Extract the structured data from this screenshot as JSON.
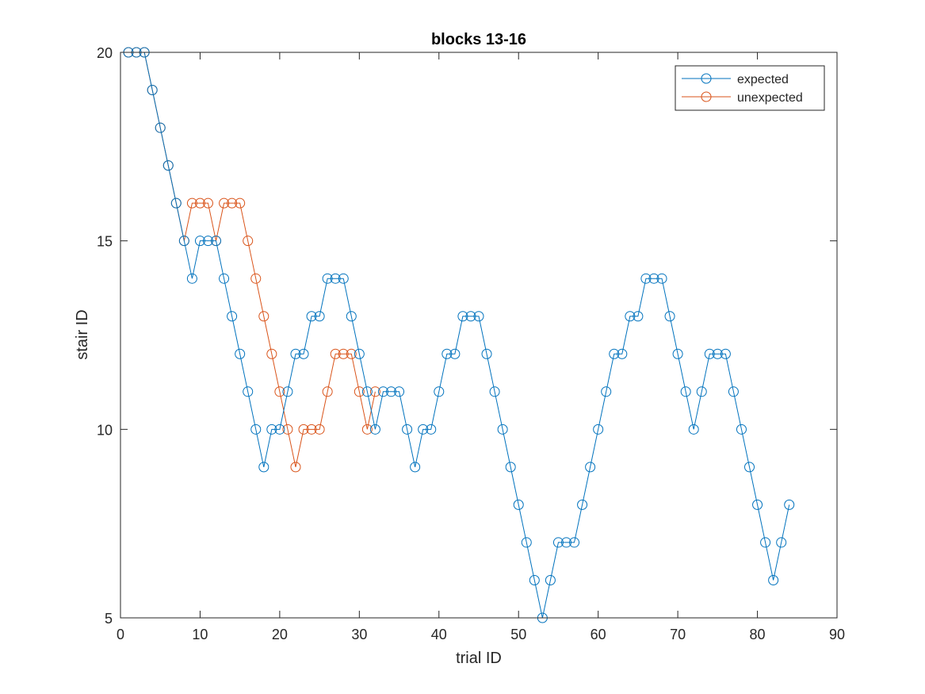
{
  "chart_data": {
    "type": "line",
    "title": "blocks 13-16",
    "xlabel": "trial ID",
    "ylabel": "stair ID",
    "xlim": [
      0,
      90
    ],
    "ylim": [
      5,
      20
    ],
    "xticks": [
      "0",
      "10",
      "20",
      "30",
      "40",
      "50",
      "60",
      "70",
      "80",
      "90"
    ],
    "yticks": [
      "5",
      "10",
      "15",
      "20"
    ],
    "grid": false,
    "legend_position": "top-right",
    "marker": "circle",
    "series": [
      {
        "name": "expected",
        "color": "#0072BD",
        "x": [
          1,
          2,
          3,
          4,
          5,
          6,
          7,
          8,
          9,
          10,
          11,
          12,
          13,
          14,
          15,
          16,
          17,
          18,
          19,
          20,
          21,
          22,
          23,
          24,
          25,
          26,
          27,
          28,
          29,
          30,
          31,
          32,
          33,
          34,
          35,
          36,
          37,
          38,
          39,
          40,
          41,
          42,
          43,
          44,
          45,
          46,
          47,
          48,
          49,
          50,
          51,
          52,
          53,
          54,
          55,
          56,
          57,
          58,
          59,
          60,
          61,
          62,
          63,
          64,
          65,
          66,
          67,
          68,
          69,
          70,
          71,
          72,
          73,
          74,
          75,
          76,
          77,
          78,
          79,
          80,
          81,
          82,
          83,
          84
        ],
        "y": [
          20,
          20,
          20,
          19,
          18,
          17,
          16,
          15,
          14,
          15,
          15,
          15,
          14,
          13,
          12,
          11,
          10,
          9,
          10,
          10,
          11,
          12,
          12,
          13,
          13,
          14,
          14,
          14,
          13,
          12,
          11,
          10,
          11,
          11,
          11,
          10,
          9,
          10,
          10,
          11,
          12,
          12,
          13,
          13,
          13,
          12,
          11,
          10,
          9,
          8,
          7,
          6,
          5,
          6,
          7,
          7,
          7,
          8,
          9,
          10,
          11,
          12,
          12,
          13,
          13,
          14,
          14,
          14,
          13,
          12,
          11,
          10,
          11,
          12,
          12,
          12,
          11,
          10,
          9,
          8,
          7,
          6,
          7,
          8
        ]
      },
      {
        "name": "unexpected",
        "color": "#D95319",
        "x": [
          1,
          2,
          3,
          4,
          5,
          6,
          7,
          8,
          9,
          10,
          11,
          12,
          13,
          14,
          15,
          16,
          17,
          18,
          19,
          20,
          21,
          22,
          23,
          24,
          25,
          26,
          27,
          28,
          29,
          30,
          31,
          32
        ],
        "y": [
          20,
          20,
          20,
          19,
          18,
          17,
          16,
          15,
          16,
          16,
          16,
          15,
          16,
          16,
          16,
          15,
          14,
          13,
          12,
          11,
          10,
          9,
          10,
          10,
          10,
          11,
          12,
          12,
          12,
          11,
          10,
          11
        ]
      }
    ]
  }
}
